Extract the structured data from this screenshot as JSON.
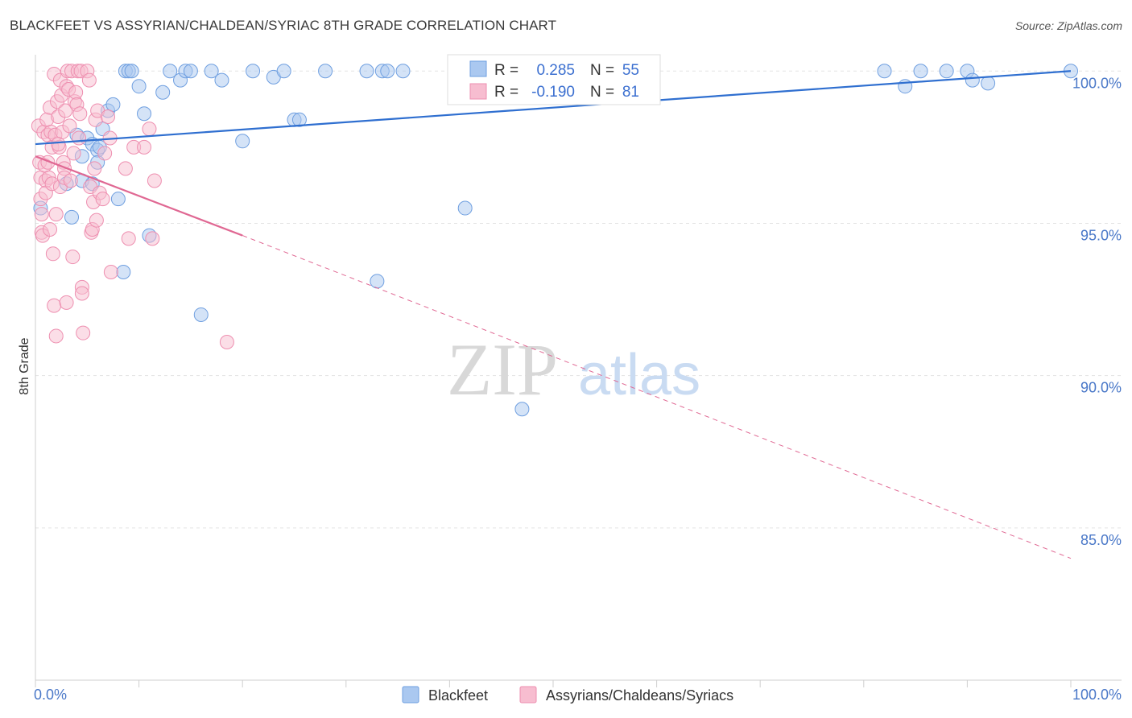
{
  "header": {
    "title": "BLACKFEET VS ASSYRIAN/CHALDEAN/SYRIAC 8TH GRADE CORRELATION CHART",
    "source": "Source: ZipAtlas.com"
  },
  "watermark": {
    "zip": "ZIP",
    "atlas": "atlas"
  },
  "stats_box": {
    "rows": [
      {
        "r_label": "R =",
        "r_value": "0.285",
        "n_label": "N =",
        "n_value": "55",
        "color": "#aac8f0"
      },
      {
        "r_label": "R =",
        "r_value": "-0.190",
        "n_label": "N =",
        "n_value": "81",
        "color": "#f7bdd0"
      }
    ]
  },
  "chart_data": {
    "type": "scatter",
    "title": "BLACKFEET VS ASSYRIAN/CHALDEAN/SYRIAC 8TH GRADE CORRELATION CHART",
    "xlabel": "",
    "ylabel": "8th Grade",
    "xlim": [
      0,
      100
    ],
    "ylim": [
      80.0,
      100.8
    ],
    "x_tick_labels": [
      "0.0%",
      "100.0%"
    ],
    "y_ticks": [
      {
        "value": 85.0,
        "label": "85.0%"
      },
      {
        "value": 90.0,
        "label": "90.0%"
      },
      {
        "value": 95.0,
        "label": "95.0%"
      },
      {
        "value": 100.0,
        "label": "100.0%"
      }
    ],
    "grid": true,
    "legend_position": "bottom-center",
    "series": [
      {
        "name": "Blackfeet",
        "color": "#aac8f0",
        "edge": "#6f9fe0",
        "trend": {
          "x0": 0,
          "y0": 97.6,
          "x1": 100,
          "y1": 100.0,
          "color": "#2f6fd0"
        },
        "points": [
          [
            3,
            96.3
          ],
          [
            3.5,
            95.2
          ],
          [
            4,
            97.9
          ],
          [
            4.5,
            97.2
          ],
          [
            4.5,
            96.4
          ],
          [
            5,
            97.8
          ],
          [
            5.5,
            97.6
          ],
          [
            5.5,
            96.3
          ],
          [
            6,
            97.4
          ],
          [
            6,
            97.0
          ],
          [
            6.2,
            97.5
          ],
          [
            6.5,
            98.1
          ],
          [
            7,
            98.7
          ],
          [
            7.5,
            98.9
          ],
          [
            8,
            95.8
          ],
          [
            8.5,
            93.4
          ],
          [
            8.7,
            100.0
          ],
          [
            9,
            100.0
          ],
          [
            9.3,
            100.0
          ],
          [
            10,
            99.5
          ],
          [
            10.5,
            98.6
          ],
          [
            11,
            94.6
          ],
          [
            12.3,
            99.3
          ],
          [
            13,
            100.0
          ],
          [
            14,
            99.7
          ],
          [
            14.5,
            100.0
          ],
          [
            15,
            100.0
          ],
          [
            16,
            92.0
          ],
          [
            17,
            100.0
          ],
          [
            18,
            99.7
          ],
          [
            20,
            97.7
          ],
          [
            21,
            100.0
          ],
          [
            23,
            99.8
          ],
          [
            24,
            100.0
          ],
          [
            25,
            98.4
          ],
          [
            25.5,
            98.4
          ],
          [
            28,
            100.0
          ],
          [
            32,
            100.0
          ],
          [
            33,
            93.1
          ],
          [
            33.5,
            100.0
          ],
          [
            34,
            100.0
          ],
          [
            35.5,
            100.0
          ],
          [
            41,
            100.0
          ],
          [
            41.5,
            95.5
          ],
          [
            46,
            100.0
          ],
          [
            47,
            88.9
          ],
          [
            82,
            100.0
          ],
          [
            84,
            99.5
          ],
          [
            85.5,
            100.0
          ],
          [
            88,
            100.0
          ],
          [
            90,
            100.0
          ],
          [
            90.5,
            99.7
          ],
          [
            92,
            99.6
          ],
          [
            100,
            100.0
          ],
          [
            0.5,
            95.5
          ]
        ]
      },
      {
        "name": "Assyrians/Chaldeans/Syriacs",
        "color": "#f7bdd0",
        "edge": "#ee8fb0",
        "trend": {
          "x0": 0,
          "y0": 97.2,
          "x1": 20,
          "y1": 94.6,
          "dash_to_x": 100,
          "dash_to_y": 84.0,
          "color": "#e06893"
        },
        "points": [
          [
            0.3,
            98.2
          ],
          [
            0.4,
            97.0
          ],
          [
            0.5,
            96.5
          ],
          [
            0.5,
            95.8
          ],
          [
            0.6,
            95.3
          ],
          [
            0.6,
            94.7
          ],
          [
            0.7,
            94.6
          ],
          [
            0.8,
            98.0
          ],
          [
            0.9,
            96.9
          ],
          [
            1.0,
            96.4
          ],
          [
            1.0,
            96.0
          ],
          [
            1.1,
            98.4
          ],
          [
            1.2,
            97.9
          ],
          [
            1.2,
            97.0
          ],
          [
            1.3,
            96.5
          ],
          [
            1.4,
            98.8
          ],
          [
            1.4,
            94.8
          ],
          [
            1.5,
            98.0
          ],
          [
            1.6,
            97.5
          ],
          [
            1.6,
            96.3
          ],
          [
            1.7,
            94.0
          ],
          [
            1.8,
            99.9
          ],
          [
            1.8,
            92.3
          ],
          [
            1.9,
            97.9
          ],
          [
            2.0,
            95.3
          ],
          [
            2.0,
            91.3
          ],
          [
            2.1,
            99.0
          ],
          [
            2.2,
            98.5
          ],
          [
            2.3,
            97.5
          ],
          [
            2.4,
            99.7
          ],
          [
            2.4,
            96.2
          ],
          [
            2.5,
            99.2
          ],
          [
            2.6,
            98.0
          ],
          [
            2.7,
            97.0
          ],
          [
            2.8,
            96.8
          ],
          [
            2.8,
            96.5
          ],
          [
            2.9,
            98.7
          ],
          [
            3.0,
            99.5
          ],
          [
            3.0,
            92.4
          ],
          [
            3.1,
            100.0
          ],
          [
            3.2,
            99.4
          ],
          [
            3.3,
            98.2
          ],
          [
            3.4,
            96.4
          ],
          [
            3.5,
            100.0
          ],
          [
            3.6,
            93.9
          ],
          [
            3.7,
            97.3
          ],
          [
            3.8,
            99.0
          ],
          [
            3.9,
            99.3
          ],
          [
            4.0,
            98.9
          ],
          [
            4.1,
            100.0
          ],
          [
            4.2,
            97.8
          ],
          [
            4.3,
            98.6
          ],
          [
            4.4,
            100.0
          ],
          [
            4.5,
            92.9
          ],
          [
            4.5,
            92.7
          ],
          [
            4.6,
            91.4
          ],
          [
            5.0,
            100.0
          ],
          [
            5.2,
            99.7
          ],
          [
            5.3,
            96.2
          ],
          [
            5.4,
            94.7
          ],
          [
            5.5,
            94.8
          ],
          [
            5.6,
            95.7
          ],
          [
            5.7,
            96.8
          ],
          [
            5.8,
            98.4
          ],
          [
            5.9,
            95.1
          ],
          [
            6.0,
            98.7
          ],
          [
            6.2,
            96.0
          ],
          [
            6.5,
            95.8
          ],
          [
            6.7,
            97.3
          ],
          [
            7.0,
            98.5
          ],
          [
            7.2,
            97.8
          ],
          [
            7.3,
            93.4
          ],
          [
            8.7,
            96.8
          ],
          [
            9.0,
            94.5
          ],
          [
            9.5,
            97.5
          ],
          [
            10.5,
            97.5
          ],
          [
            11.0,
            98.1
          ],
          [
            11.3,
            94.5
          ],
          [
            11.5,
            96.4
          ],
          [
            18.5,
            91.1
          ],
          [
            2.2,
            97.6
          ]
        ]
      }
    ]
  }
}
